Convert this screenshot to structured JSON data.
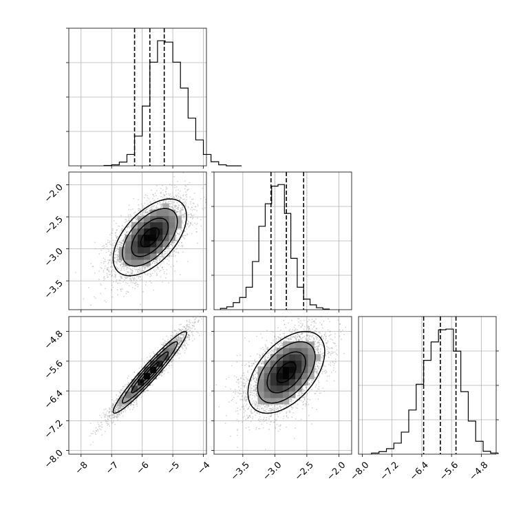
{
  "chart_data": {
    "type": "corner",
    "grid": true,
    "params": [
      {
        "index": 0,
        "range": [
          -8.4,
          -3.9
        ],
        "ticks": [
          -8,
          -7,
          -6,
          -5,
          -4
        ],
        "tick_labels": [
          "−8",
          "−7",
          "−6",
          "−5",
          "−4"
        ],
        "quantiles": [
          -6.25,
          -5.75,
          -5.28
        ],
        "hist": {
          "bin_start": -7.25,
          "bin_width": 0.25,
          "counts": [
            1,
            3,
            11,
            33,
            86,
            173,
            300,
            362,
            358,
            300,
            225,
            138,
            75,
            33,
            12,
            3,
            0,
            0
          ]
        }
      },
      {
        "index": 1,
        "range": [
          -3.95,
          -1.8
        ],
        "ticks": [
          -3.5,
          -3.0,
          -2.5,
          -2.0
        ],
        "tick_labels": [
          "−3.5",
          "−3.0",
          "−2.5",
          "−2.0"
        ],
        "quantiles": [
          -3.06,
          -2.82,
          -2.55
        ],
        "hist": {
          "bin_start": -3.85,
          "bin_width": 0.1,
          "counts": [
            4,
            9,
            22,
            38,
            70,
            150,
            260,
            330,
            385,
            390,
            300,
            160,
            70,
            33,
            15,
            6,
            2
          ]
        }
      },
      {
        "index": 2,
        "range": [
          -8.1,
          -4.4
        ],
        "ticks": [
          -8.0,
          -7.2,
          -6.4,
          -5.6,
          -4.8
        ],
        "tick_labels": [
          "−8.0",
          "−7.2",
          "−6.4",
          "−5.6",
          "−4.8"
        ],
        "quantiles": [
          -6.35,
          -5.9,
          -5.48
        ],
        "hist": {
          "bin_start": -7.75,
          "bin_width": 0.2,
          "counts": [
            3,
            7,
            15,
            30,
            60,
            120,
            190,
            255,
            305,
            338,
            340,
            280,
            170,
            90,
            35,
            8,
            3
          ]
        }
      }
    ],
    "pairs": [
      {
        "x_param": 0,
        "y_param": 1,
        "mean": [
          -5.75,
          -2.82
        ],
        "sd": [
          0.6,
          0.3
        ],
        "corr": 0.55
      },
      {
        "x_param": 0,
        "y_param": 2,
        "mean": [
          -5.75,
          -5.9
        ],
        "sd": [
          0.6,
          0.55
        ],
        "corr": 0.96
      },
      {
        "x_param": 1,
        "y_param": 2,
        "mean": [
          -2.82,
          -5.9
        ],
        "sd": [
          0.3,
          0.55
        ],
        "corr": 0.5
      }
    ],
    "contour_levels_sigma": [
      0.5,
      1.0,
      1.5,
      2.0
    ],
    "n_samples": 4000
  }
}
